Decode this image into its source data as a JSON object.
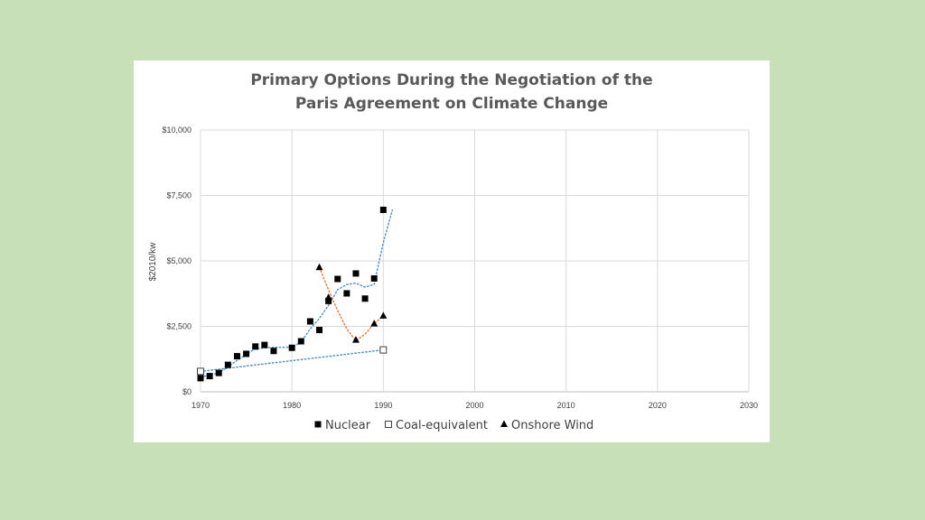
{
  "chart_data": {
    "type": "scatter",
    "title_lines": [
      "Primary Options During the Negotiation of the",
      "Paris Agreement on Climate Change"
    ],
    "ylabel": "$2010/kw",
    "xlim": [
      1970,
      2030
    ],
    "ylim": [
      0,
      10000
    ],
    "x_ticks": [
      1970,
      1980,
      1990,
      2000,
      2010,
      2020,
      2030
    ],
    "x_tick_labels": [
      "1970",
      "1980",
      "1990",
      "2000",
      "2010",
      "2020",
      "2030"
    ],
    "y_ticks": [
      0,
      2500,
      5000,
      7500,
      10000
    ],
    "y_tick_labels": [
      "$0",
      "$2,500",
      "$5,000",
      "$7,500",
      "$10,000"
    ],
    "grid": true,
    "legend_position": "bottom",
    "series": [
      {
        "name": "Nuclear",
        "marker": "square-filled",
        "color": "#000000",
        "trendline_color": "#4a90c8",
        "points": [
          [
            1970,
            520
          ],
          [
            1971,
            600
          ],
          [
            1972,
            720
          ],
          [
            1973,
            1030
          ],
          [
            1974,
            1360
          ],
          [
            1975,
            1450
          ],
          [
            1976,
            1730
          ],
          [
            1977,
            1790
          ],
          [
            1978,
            1560
          ],
          [
            1980,
            1680
          ],
          [
            1981,
            1930
          ],
          [
            1982,
            2690
          ],
          [
            1983,
            2360
          ],
          [
            1984,
            3470
          ],
          [
            1985,
            4310
          ],
          [
            1986,
            3760
          ],
          [
            1987,
            4520
          ],
          [
            1988,
            3560
          ],
          [
            1989,
            4330
          ],
          [
            1990,
            6950
          ]
        ],
        "trendline": [
          [
            1970,
            560
          ],
          [
            1972,
            720
          ],
          [
            1974,
            1200
          ],
          [
            1976,
            1650
          ],
          [
            1978,
            1700
          ],
          [
            1980,
            1700
          ],
          [
            1981,
            1900
          ],
          [
            1982,
            2400
          ],
          [
            1983,
            2800
          ],
          [
            1984,
            3300
          ],
          [
            1985,
            3900
          ],
          [
            1986,
            4100
          ],
          [
            1987,
            4150
          ],
          [
            1988,
            4000
          ],
          [
            1989,
            4100
          ],
          [
            1990,
            5700
          ],
          [
            1991,
            6950
          ]
        ]
      },
      {
        "name": "Coal-equivalent",
        "marker": "square-open",
        "color": "#404040",
        "trendline_color": "#4a90c8",
        "points": [
          [
            1970,
            780
          ],
          [
            1990,
            1600
          ]
        ],
        "trendline": [
          [
            1970,
            780
          ],
          [
            1990,
            1600
          ]
        ]
      },
      {
        "name": "Onshore Wind",
        "marker": "triangle-filled",
        "color": "#000000",
        "trendline_color": "#e07b39",
        "points": [
          [
            1983,
            4750
          ],
          [
            1984,
            3600
          ],
          [
            1987,
            1980
          ],
          [
            1989,
            2600
          ],
          [
            1990,
            2900
          ]
        ],
        "trendline": [
          [
            1983,
            4750
          ],
          [
            1984,
            3900
          ],
          [
            1985,
            3100
          ],
          [
            1986,
            2400
          ],
          [
            1987,
            1950
          ],
          [
            1988,
            2200
          ],
          [
            1989,
            2600
          ],
          [
            1990,
            2900
          ]
        ]
      }
    ]
  }
}
